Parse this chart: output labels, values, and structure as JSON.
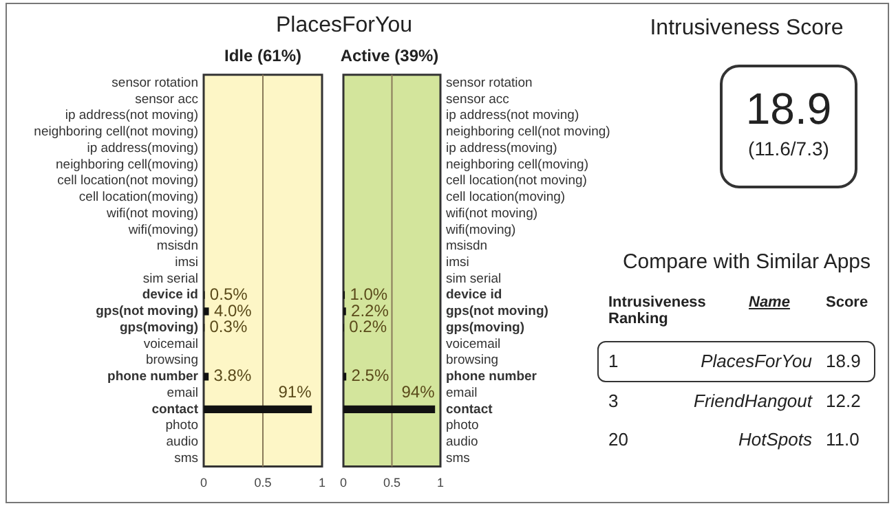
{
  "chart_data": [
    {
      "type": "bar",
      "orientation": "horizontal",
      "title": "PlacesForYou",
      "subtitle": "Idle (61%)",
      "categories": [
        "sensor rotation",
        "sensor acc",
        "ip address(not moving)",
        "neighboring cell(not moving)",
        "ip address(moving)",
        "neighboring cell(moving)",
        "cell location(not moving)",
        "cell location(moving)",
        "wifi(not moving)",
        "wifi(moving)",
        "msisdn",
        "imsi",
        "sim serial",
        "device id",
        "gps(not moving)",
        "gps(moving)",
        "voicemail",
        "browsing",
        "phone number",
        "email",
        "contact",
        "photo",
        "audio",
        "sms"
      ],
      "values": [
        null,
        null,
        null,
        null,
        null,
        null,
        null,
        null,
        null,
        null,
        null,
        null,
        null,
        0.005,
        0.04,
        0.003,
        null,
        null,
        0.038,
        null,
        0.91,
        null,
        null,
        null
      ],
      "value_labels": [
        null,
        null,
        null,
        null,
        null,
        null,
        null,
        null,
        null,
        null,
        null,
        null,
        null,
        "0.5%",
        "4.0%",
        "0.3%",
        null,
        null,
        "3.8%",
        null,
        "91%",
        null,
        null,
        null
      ],
      "color": "#111111",
      "xlim": [
        0,
        1
      ],
      "xticks": [
        0,
        0.5,
        1
      ],
      "ref_lines": [
        {
          "axis": "x",
          "value": 0.5,
          "color": "#8a7a5a"
        }
      ]
    },
    {
      "type": "bar",
      "orientation": "horizontal",
      "subtitle": "Active (39%)",
      "categories": [
        "sensor rotation",
        "sensor acc",
        "ip address(not moving)",
        "neighboring cell(not moving)",
        "ip address(moving)",
        "neighboring cell(moving)",
        "cell location(not moving)",
        "cell location(moving)",
        "wifi(not moving)",
        "wifi(moving)",
        "msisdn",
        "imsi",
        "sim serial",
        "device id",
        "gps(not moving)",
        "gps(moving)",
        "voicemail",
        "browsing",
        "phone number",
        "email",
        "contact",
        "photo",
        "audio",
        "sms"
      ],
      "values": [
        null,
        null,
        null,
        null,
        null,
        null,
        null,
        null,
        null,
        null,
        null,
        null,
        null,
        0.01,
        0.022,
        0.002,
        null,
        null,
        0.025,
        null,
        0.94,
        null,
        null,
        null
      ],
      "value_labels": [
        null,
        null,
        null,
        null,
        null,
        null,
        null,
        null,
        null,
        null,
        null,
        null,
        null,
        "1.0%",
        "2.2%",
        "0.2%",
        null,
        null,
        "2.5%",
        null,
        "94%",
        null,
        null,
        null
      ],
      "color": "#111111",
      "xlim": [
        0,
        1
      ],
      "xticks": [
        0,
        0.5,
        1
      ],
      "ref_lines": [
        {
          "axis": "x",
          "value": 0.5,
          "color": "#8a7a5a"
        }
      ]
    },
    {
      "type": "other",
      "title": "Intrusiveness Score",
      "annotations": [
        "18.9",
        "(11.6/7.3)",
        "Compare with Similar Apps",
        "Intrusiveness Ranking",
        "Name",
        "Score",
        "1",
        "PlacesForYou",
        "18.9",
        "3",
        "FriendHangout",
        "12.2",
        "20",
        "HotSpots",
        "11.0"
      ]
    }
  ]
}
